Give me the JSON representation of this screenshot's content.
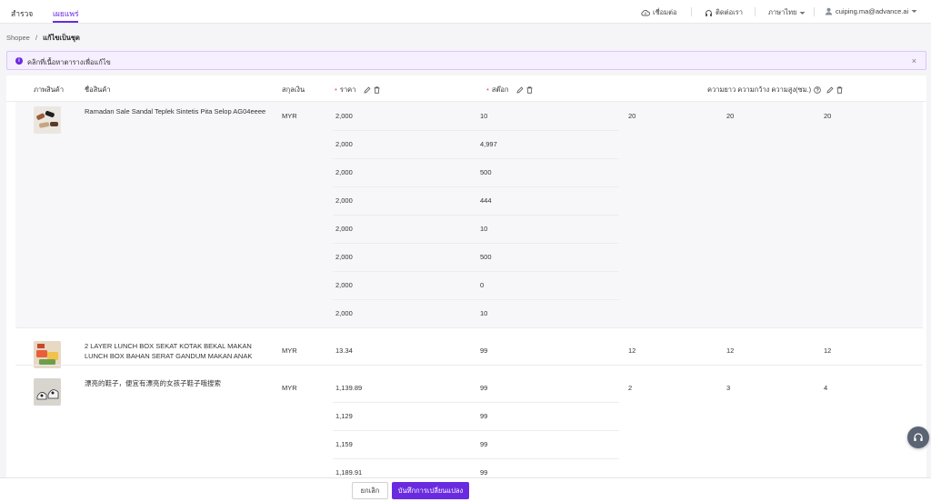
{
  "nav": {
    "tabs": [
      {
        "label": "สำรวจ"
      },
      {
        "label": "เผยแพร่"
      }
    ],
    "connect_label": "เชื่อมต่อ",
    "contact_label": "ติดต่อเรา",
    "language_label": "ภาษาไทย",
    "user_email": "cuiping.ma@advance.ai"
  },
  "breadcrumb": {
    "root": "Shopee",
    "separator": "/",
    "current": "แก้ไขเป็นชุด"
  },
  "alert": {
    "text": "คลิกที่เนื้อหาตารางเพื่อแก้ไข",
    "close": "×"
  },
  "table": {
    "headers": {
      "image": "ภาพสินค้า",
      "name": "ชื่อสินค้า",
      "currency": "สกุลเงิน",
      "price_required": "*",
      "price": "ราคา",
      "stock_required": "*",
      "stock": "สต๊อก",
      "dimensions": "ความยาว ความกว้าง ความสูง(ซม.)"
    },
    "products": [
      {
        "name": "Ramadan Sale Sandal Teplek Sintetis Pita Selop AG04eeee",
        "currency": "MYR",
        "length": "20",
        "width": "20",
        "height": "20",
        "variants": [
          {
            "price": "2,000",
            "stock": "10"
          },
          {
            "price": "2,000",
            "stock": "4,997"
          },
          {
            "price": "2,000",
            "stock": "500"
          },
          {
            "price": "2,000",
            "stock": "444"
          },
          {
            "price": "2,000",
            "stock": "10"
          },
          {
            "price": "2,000",
            "stock": "500"
          },
          {
            "price": "2,000",
            "stock": "0"
          },
          {
            "price": "2,000",
            "stock": "10"
          }
        ]
      },
      {
        "name": "2 LAYER LUNCH BOX SEKAT KOTAK BEKAL MAKAN LUNCH BOX BAHAN SERAT GANDUM MAKAN ANAK",
        "currency": "MYR",
        "length": "12",
        "width": "12",
        "height": "12",
        "variants": [
          {
            "price": "13.34",
            "stock": "99"
          }
        ]
      },
      {
        "name": "漂亮的鞋子，便宜有漂亮的女孩子鞋子哦搜索",
        "currency": "MYR",
        "length": "2",
        "width": "3",
        "height": "4",
        "variants": [
          {
            "price": "1,139.89",
            "stock": "99"
          },
          {
            "price": "1,129",
            "stock": "99"
          },
          {
            "price": "1,159",
            "stock": "99"
          },
          {
            "price": "1,189.91",
            "stock": "99"
          }
        ]
      }
    ]
  },
  "footer": {
    "cancel_label": "ยกเลิก",
    "save_label": "บันทึกการเปลี่ยนแปลง"
  },
  "colors": {
    "accent": "#6a2be0",
    "required": "#e0373c",
    "alert_bg": "#f6efff"
  }
}
